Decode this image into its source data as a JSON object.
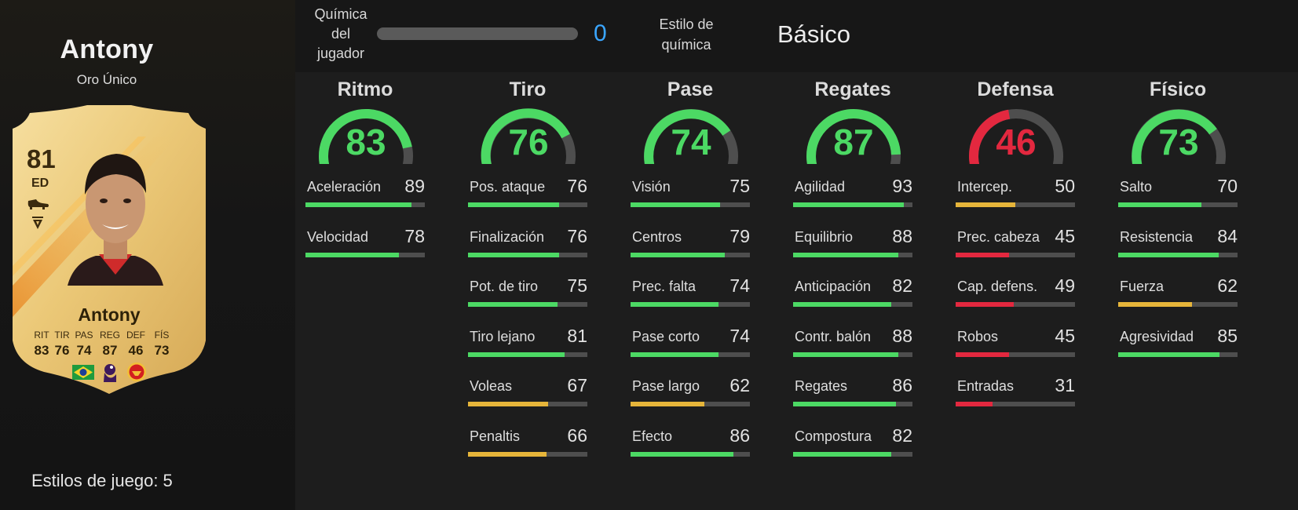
{
  "player": {
    "name": "Antony",
    "version": "Oro Único",
    "rating": "81",
    "position": "ED",
    "icons": [
      "boot-icon",
      "skill-rank-icon"
    ],
    "card_stats": [
      {
        "abbr": "RIT",
        "value": "83"
      },
      {
        "abbr": "TIR",
        "value": "76"
      },
      {
        "abbr": "PAS",
        "value": "74"
      },
      {
        "abbr": "REG",
        "value": "87"
      },
      {
        "abbr": "DEF",
        "value": "46"
      },
      {
        "abbr": "FÍS",
        "value": "73"
      }
    ],
    "badges": [
      "brazil-flag-icon",
      "premier-league-icon",
      "manchester-united-crest-icon"
    ],
    "playstyles_label": "Estilos de juego: 5"
  },
  "chemistry": {
    "label_lines": [
      "Química",
      "del",
      "jugador"
    ],
    "value": "0",
    "progress": 0,
    "style_label_lines": [
      "Estilo de",
      "química"
    ],
    "style_value": "Básico"
  },
  "colors": {
    "green": "#4cd964",
    "yellow": "#e6b53a",
    "red": "#e3283f",
    "blue": "#3aa6ff",
    "track": "#4e4e4e"
  },
  "categories": [
    {
      "title": "Ritmo",
      "value": 83,
      "stats": [
        {
          "name": "Aceleración",
          "value": 89
        },
        {
          "name": "Velocidad",
          "value": 78
        }
      ]
    },
    {
      "title": "Tiro",
      "value": 76,
      "stats": [
        {
          "name": "Pos. ataque",
          "value": 76
        },
        {
          "name": "Finalización",
          "value": 76
        },
        {
          "name": "Pot. de tiro",
          "value": 75
        },
        {
          "name": "Tiro lejano",
          "value": 81
        },
        {
          "name": "Voleas",
          "value": 67
        },
        {
          "name": "Penaltis",
          "value": 66
        }
      ]
    },
    {
      "title": "Pase",
      "value": 74,
      "stats": [
        {
          "name": "Visión",
          "value": 75
        },
        {
          "name": "Centros",
          "value": 79
        },
        {
          "name": "Prec. falta",
          "value": 74
        },
        {
          "name": "Pase corto",
          "value": 74
        },
        {
          "name": "Pase largo",
          "value": 62
        },
        {
          "name": "Efecto",
          "value": 86
        }
      ]
    },
    {
      "title": "Regates",
      "value": 87,
      "stats": [
        {
          "name": "Agilidad",
          "value": 93
        },
        {
          "name": "Equilibrio",
          "value": 88
        },
        {
          "name": "Anticipación",
          "value": 82
        },
        {
          "name": "Contr. balón",
          "value": 88
        },
        {
          "name": "Regates",
          "value": 86
        },
        {
          "name": "Compostura",
          "value": 82
        }
      ]
    },
    {
      "title": "Defensa",
      "value": 46,
      "stats": [
        {
          "name": "Intercep.",
          "value": 50
        },
        {
          "name": "Prec. cabeza",
          "value": 45
        },
        {
          "name": "Cap. defens.",
          "value": 49
        },
        {
          "name": "Robos",
          "value": 45
        },
        {
          "name": "Entradas",
          "value": 31
        }
      ]
    },
    {
      "title": "Físico",
      "value": 73,
      "stats": [
        {
          "name": "Salto",
          "value": 70
        },
        {
          "name": "Resistencia",
          "value": 84
        },
        {
          "name": "Fuerza",
          "value": 62
        },
        {
          "name": "Agresividad",
          "value": 85
        }
      ]
    }
  ]
}
